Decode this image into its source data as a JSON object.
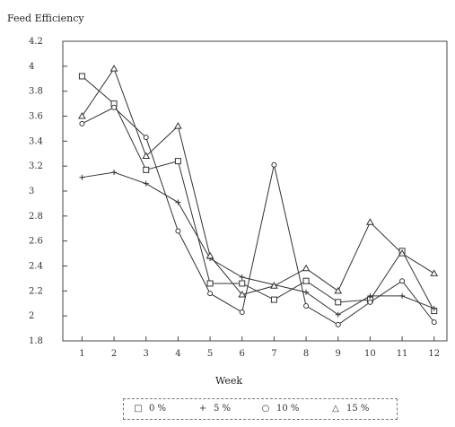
{
  "chart_data": {
    "type": "line",
    "ylabel": "Feed Efficiency",
    "xlabel": "Week",
    "x": [
      1,
      2,
      3,
      4,
      5,
      6,
      7,
      8,
      9,
      10,
      11,
      12
    ],
    "xticks": [
      "1",
      "2",
      "3",
      "4",
      "5",
      "6",
      "7",
      "8",
      "9",
      "10",
      "11",
      "12"
    ],
    "ylim": [
      1.8,
      4.2
    ],
    "yticks": [
      "1.8",
      "2",
      "2.2",
      "2.4",
      "2.6",
      "2.8",
      "3",
      "3.2",
      "3.4",
      "3.6",
      "3.8",
      "4",
      "4.2"
    ],
    "grid": false,
    "legend_position": "bottom",
    "series": [
      {
        "name": "0 %",
        "marker": "square",
        "values": [
          3.92,
          3.7,
          3.17,
          3.24,
          2.26,
          2.26,
          2.13,
          2.28,
          2.11,
          2.13,
          2.52,
          2.04
        ]
      },
      {
        "name": "5 %",
        "marker": "plus",
        "values": [
          3.11,
          3.15,
          3.06,
          2.91,
          2.46,
          2.31,
          2.25,
          2.19,
          2.01,
          2.16,
          2.16,
          2.06
        ]
      },
      {
        "name": "10 %",
        "marker": "circle",
        "values": [
          3.54,
          3.67,
          3.43,
          2.68,
          2.18,
          2.03,
          3.21,
          2.08,
          1.93,
          2.11,
          2.28,
          1.95
        ]
      },
      {
        "name": "15 %",
        "marker": "triangle",
        "values": [
          3.6,
          3.98,
          3.28,
          3.52,
          2.48,
          2.17,
          2.24,
          2.38,
          2.2,
          2.75,
          2.5,
          2.34
        ]
      }
    ]
  }
}
